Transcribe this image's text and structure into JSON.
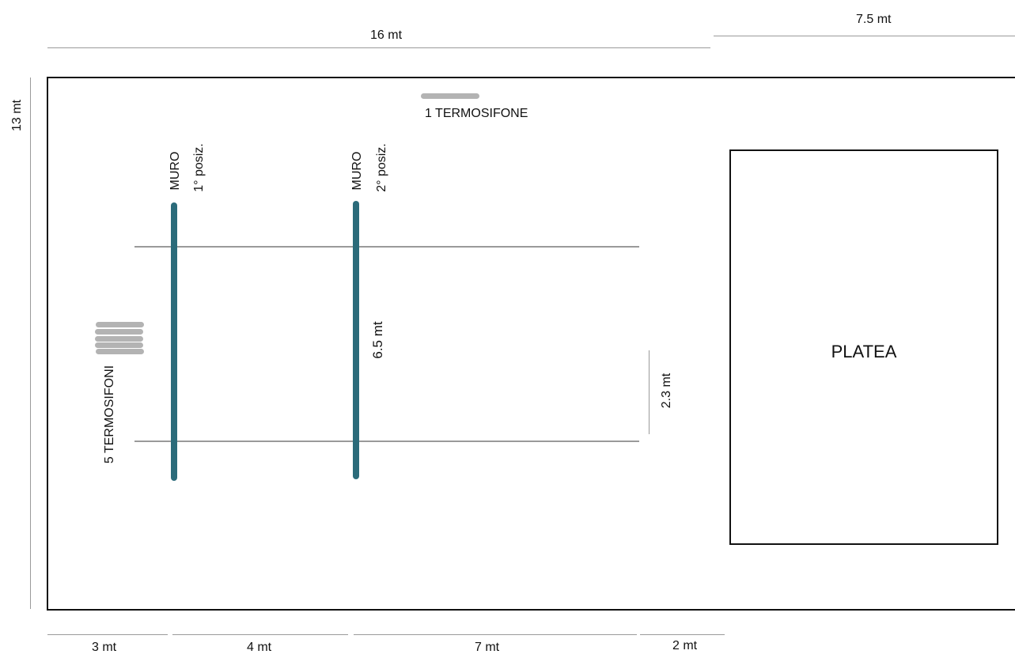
{
  "dimensions": {
    "total_width": "16 mt",
    "platea_depth": "7.5 mt",
    "hall_depth": "13 mt",
    "segment_1": "3 mt",
    "segment_2": "4 mt",
    "segment_3": "7 mt",
    "segment_4": "2 mt",
    "wall_length": "6.5 mt",
    "gap": "2.3 mt"
  },
  "labels": {
    "radiator_single": "1 TERMOSIFONE",
    "radiator_group": "5 TERMOSIFONI",
    "wall_1": "MURO",
    "wall_1_position": "1° posiz.",
    "wall_2": "MURO",
    "wall_2_position": "2° posiz.",
    "platea": "PLATEA"
  },
  "colors": {
    "wall": "#2b6b7a",
    "radiator": "#b3b3b3",
    "dimension_line": "#9a9a9a",
    "outline": "#111111"
  }
}
